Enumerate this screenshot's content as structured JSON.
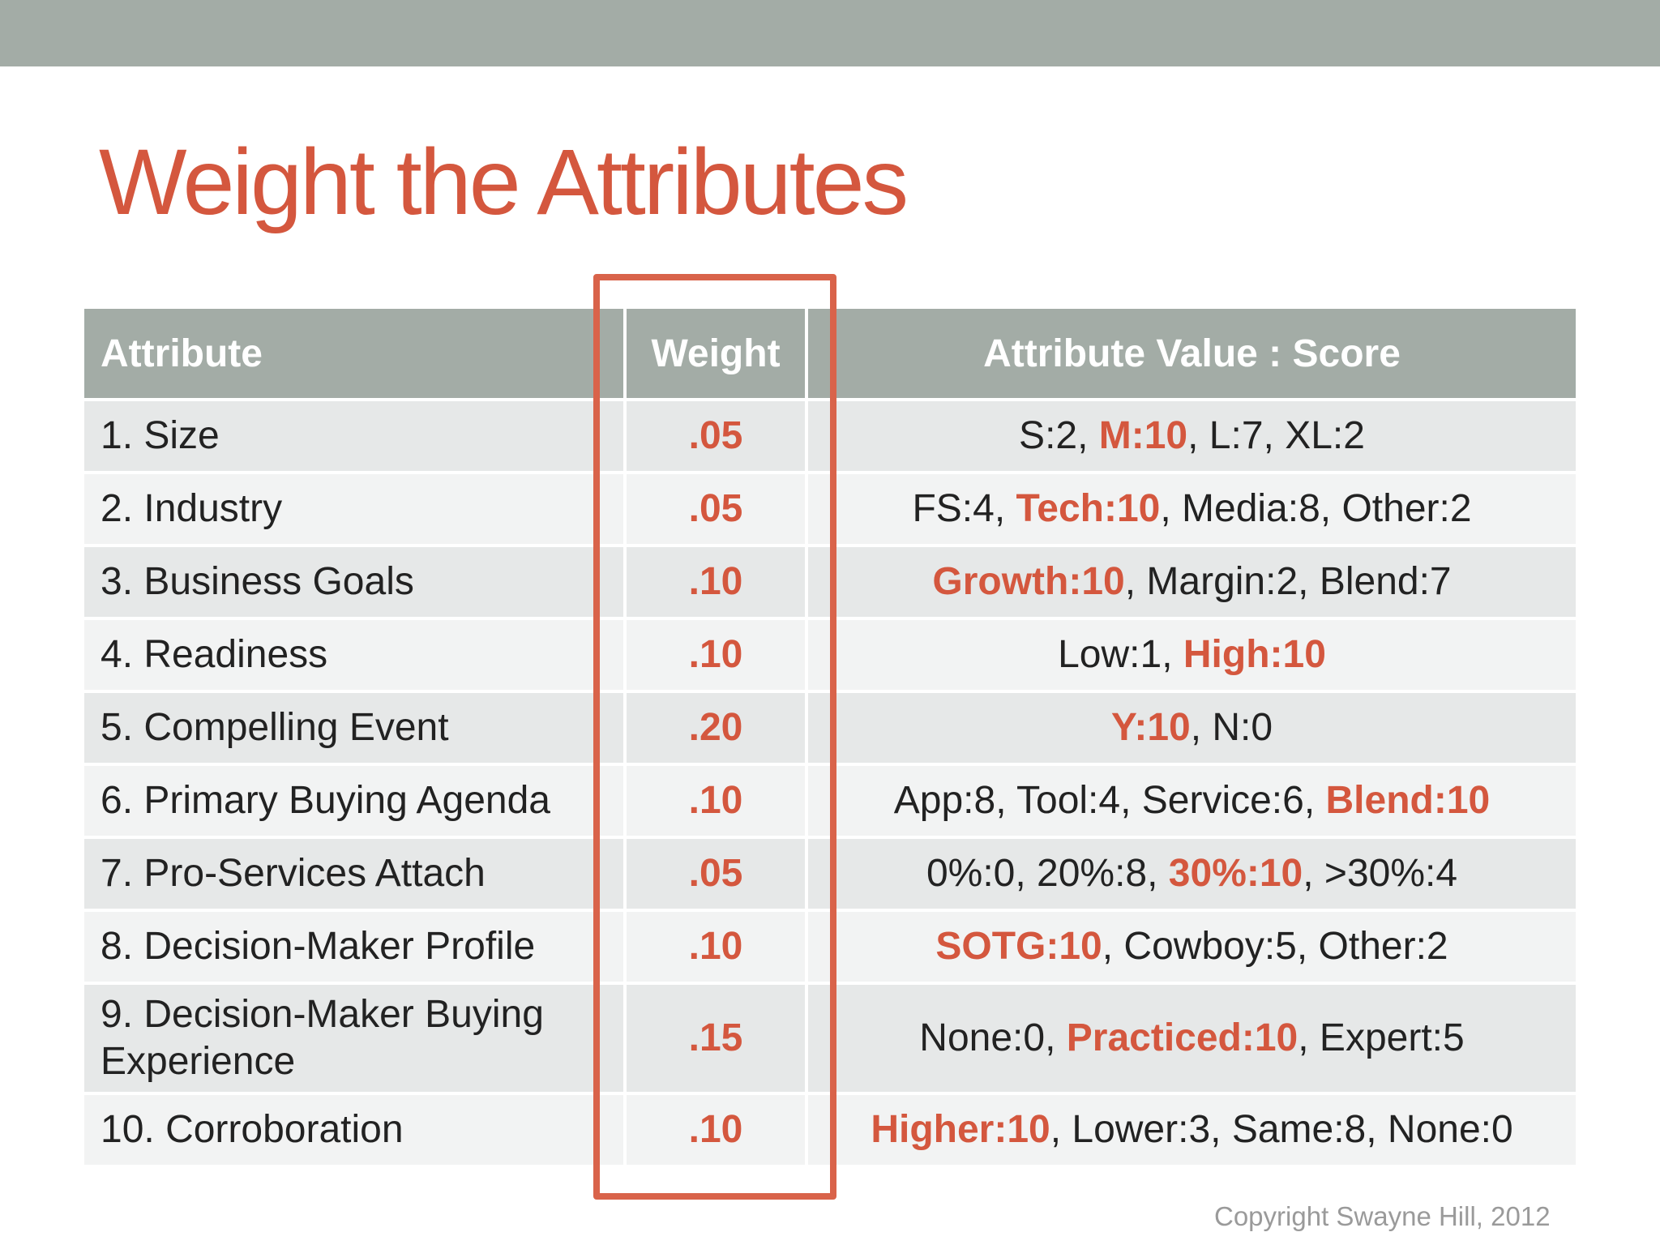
{
  "title": "Weight the Attributes",
  "colors": {
    "accent": "#d4573e",
    "header_bg": "#a3aca6",
    "row_odd": "#e6e8e8",
    "row_even": "#f2f3f3"
  },
  "table": {
    "headers": [
      "Attribute",
      "Weight",
      "Attribute Value : Score"
    ],
    "rows": [
      {
        "attribute": "1. Size",
        "weight": ".05",
        "score": [
          {
            "text": "S:2, "
          },
          {
            "text": "M:10",
            "highlight": true
          },
          {
            "text": ", L:7, XL:2"
          }
        ]
      },
      {
        "attribute": "2. Industry",
        "weight": ".05",
        "score": [
          {
            "text": "FS:4, "
          },
          {
            "text": "Tech:10",
            "highlight": true
          },
          {
            "text": ", Media:8, Other:2"
          }
        ]
      },
      {
        "attribute": "3. Business Goals",
        "weight": ".10",
        "score": [
          {
            "text": "Growth:10",
            "highlight": true
          },
          {
            "text": ", Margin:2, Blend:7"
          }
        ]
      },
      {
        "attribute": "4. Readiness",
        "weight": ".10",
        "score": [
          {
            "text": "Low:1, "
          },
          {
            "text": "High:10",
            "highlight": true
          }
        ]
      },
      {
        "attribute": "5. Compelling Event",
        "weight": ".20",
        "score": [
          {
            "text": "Y:10",
            "highlight": true
          },
          {
            "text": ", N:0"
          }
        ]
      },
      {
        "attribute": "6. Primary Buying Agenda",
        "weight": ".10",
        "score": [
          {
            "text": "App:8, Tool:4, Service:6, "
          },
          {
            "text": "Blend:10",
            "highlight": true
          }
        ]
      },
      {
        "attribute": "7. Pro-Services Attach",
        "weight": ".05",
        "score": [
          {
            "text": "0%:0, 20%:8, "
          },
          {
            "text": "30%:10",
            "highlight": true
          },
          {
            "text": ", >30%:4"
          }
        ]
      },
      {
        "attribute": "8. Decision-Maker Profile",
        "weight": ".10",
        "score": [
          {
            "text": "SOTG:10",
            "highlight": true
          },
          {
            "text": ", Cowboy:5, Other:2"
          }
        ]
      },
      {
        "attribute": "9. Decision-Maker Buying Experience",
        "weight": ".15",
        "score": [
          {
            "text": "None:0, "
          },
          {
            "text": "Practiced:10",
            "highlight": true
          },
          {
            "text": ", Expert:5"
          }
        ]
      },
      {
        "attribute": "10. Corroboration",
        "weight": ".10",
        "score": [
          {
            "text": "Higher:10",
            "highlight": true
          },
          {
            "text": ", Lower:3, Same:8, None:0"
          }
        ]
      }
    ]
  },
  "copyright": "Copyright Swayne Hill, 2012"
}
